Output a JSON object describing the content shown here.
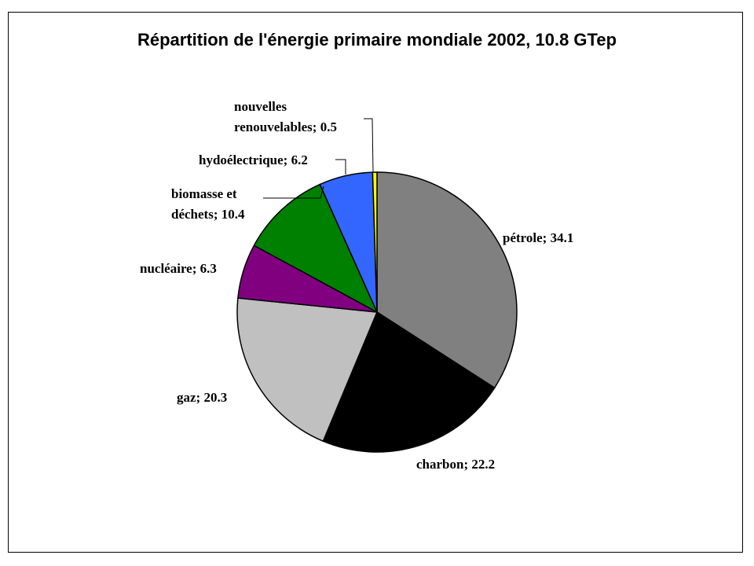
{
  "chart_data": {
    "type": "pie",
    "title": "Répartition de l'énergie primaire mondiale 2002, 10.8 GTep",
    "slices": [
      {
        "name": "pétrole",
        "value": 34.1,
        "color": "#808080",
        "label_lines": [
          "pétrole; 34.1"
        ]
      },
      {
        "name": "charbon",
        "value": 22.2,
        "color": "#000000",
        "label_lines": [
          "charbon; 22.2"
        ]
      },
      {
        "name": "gaz",
        "value": 20.3,
        "color": "#c0c0c0",
        "label_lines": [
          "gaz; 20.3"
        ]
      },
      {
        "name": "nucléaire",
        "value": 6.3,
        "color": "#800080",
        "label_lines": [
          "nucléaire; 6.3"
        ]
      },
      {
        "name": "biomasse et déchets",
        "value": 10.4,
        "color": "#008000",
        "label_lines": [
          "biomasse  et",
          "déchets; 10.4"
        ]
      },
      {
        "name": "hydoélectrique",
        "value": 6.2,
        "color": "#3366ff",
        "label_lines": [
          "hydoélectrique; 6.2"
        ]
      },
      {
        "name": "nouvelles renouvelables",
        "value": 0.5,
        "color": "#ffff00",
        "label_lines": [
          "nouvelles",
          "renouvelables; 0.5"
        ]
      }
    ]
  }
}
